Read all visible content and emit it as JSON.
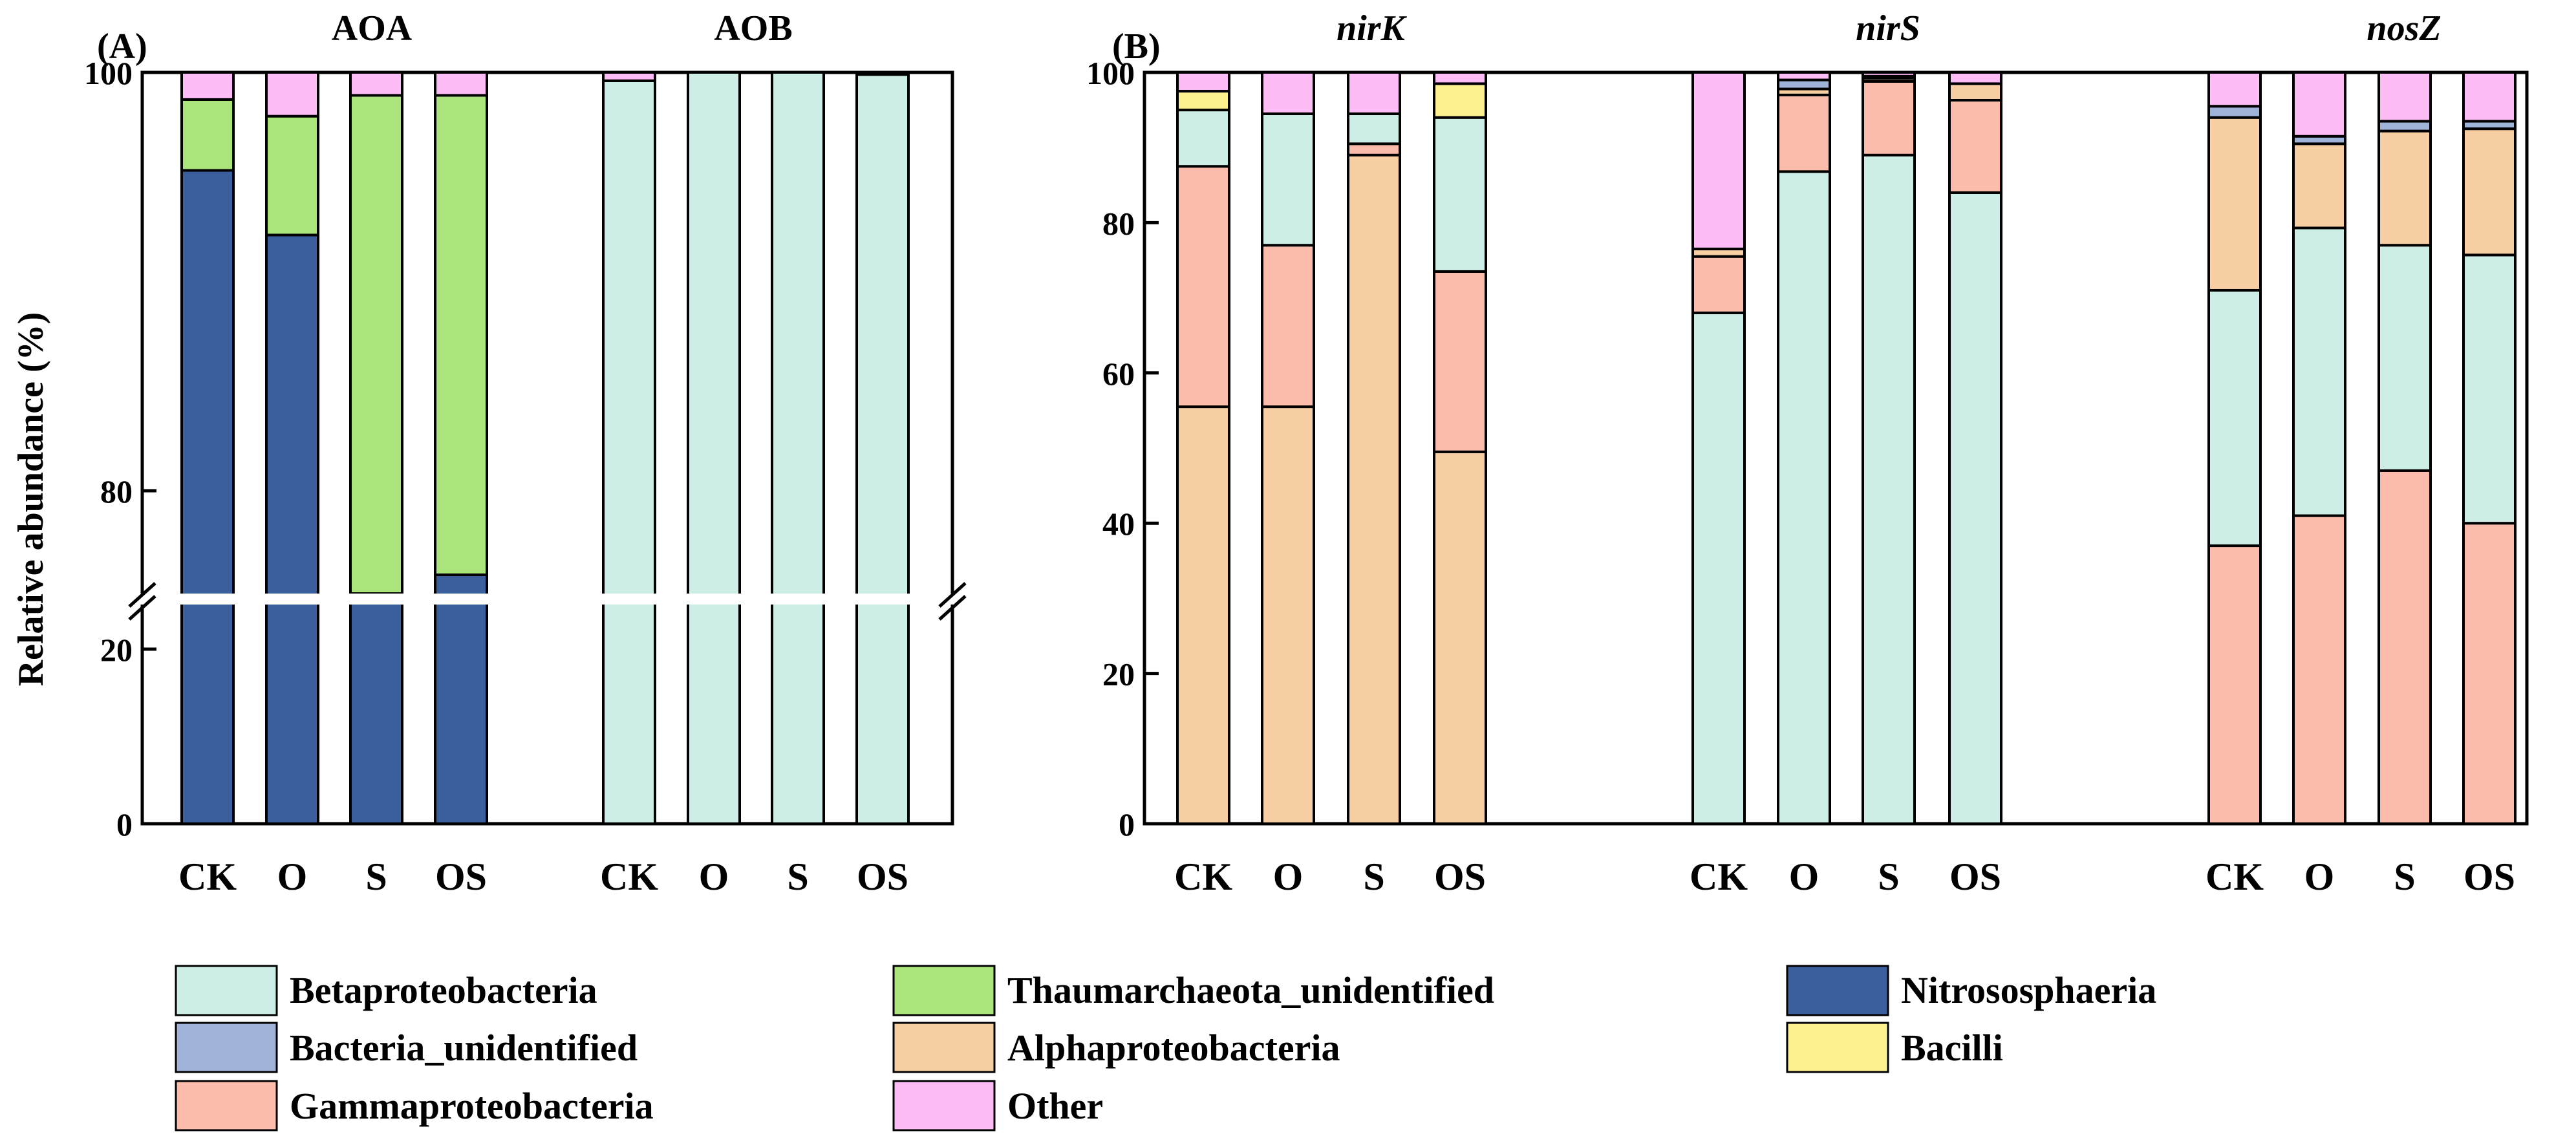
{
  "chart_data": [
    {
      "panel": "(A)",
      "type": "bar",
      "stacked": true,
      "ylabel": "Relative abundance (%)",
      "yaxis_break": {
        "lower": [
          0,
          25
        ],
        "upper": [
          75,
          100
        ]
      },
      "yticks": [
        "0",
        "20",
        "80",
        "100"
      ],
      "groups": [
        {
          "title": "AOA",
          "categories": [
            "CK",
            "O",
            "S",
            "OS"
          ],
          "series": [
            {
              "name": "Nitrososphaeria",
              "values": [
                95.3,
                92.2,
                73.9,
                75.9
              ]
            },
            {
              "name": "Thaumarchaeota_unidentified",
              "values": [
                3.4,
                5.7,
                25.0,
                23.0
              ]
            },
            {
              "name": "Other",
              "values": [
                1.3,
                2.1,
                1.1,
                1.1
              ]
            }
          ]
        },
        {
          "title": "AOB",
          "categories": [
            "CK",
            "O",
            "S",
            "OS"
          ],
          "series": [
            {
              "name": "Betaproteobacteria",
              "values": [
                99.6,
                100,
                100,
                99.9
              ]
            },
            {
              "name": "Other",
              "values": [
                0.4,
                0,
                0,
                0.1
              ]
            }
          ]
        }
      ]
    },
    {
      "panel": "(B)",
      "type": "bar",
      "stacked": true,
      "ylim": [
        0,
        100
      ],
      "yticks": [
        "0",
        "20",
        "40",
        "60",
        "80",
        "100"
      ],
      "groups": [
        {
          "title": "nirK",
          "categories": [
            "CK",
            "O",
            "S",
            "OS"
          ],
          "series": [
            {
              "name": "Alphaproteobacteria",
              "values": [
                55.5,
                55.5,
                89.0,
                49.5
              ]
            },
            {
              "name": "Gammaproteobacteria",
              "values": [
                32.0,
                21.5,
                1.5,
                24.0
              ]
            },
            {
              "name": "Betaproteobacteria",
              "values": [
                7.5,
                17.5,
                4.0,
                20.5
              ]
            },
            {
              "name": "Bacilli",
              "values": [
                2.5,
                0,
                0,
                4.5
              ]
            },
            {
              "name": "Other",
              "values": [
                2.5,
                5.5,
                5.5,
                1.5
              ]
            }
          ]
        },
        {
          "title": "nirS",
          "categories": [
            "CK",
            "O",
            "S",
            "OS"
          ],
          "series": [
            {
              "name": "Betaproteobacteria",
              "values": [
                68.0,
                86.8,
                89.0,
                84.0
              ]
            },
            {
              "name": "Gammaproteobacteria",
              "values": [
                7.5,
                10.2,
                9.8,
                12.3
              ]
            },
            {
              "name": "Alphaproteobacteria",
              "values": [
                1.0,
                0.8,
                0.4,
                2.2
              ]
            },
            {
              "name": "Bacteria_unidentified",
              "values": [
                0,
                1.2,
                0.3,
                0
              ]
            },
            {
              "name": "Other",
              "values": [
                23.5,
                1.0,
                0.5,
                1.5
              ]
            }
          ]
        },
        {
          "title": "nosZ",
          "categories": [
            "CK",
            "O",
            "S",
            "OS"
          ],
          "series": [
            {
              "name": "Gammaproteobacteria",
              "values": [
                37.0,
                41.0,
                47.0,
                40.0
              ]
            },
            {
              "name": "Betaproteobacteria",
              "values": [
                34.0,
                38.3,
                30.0,
                35.7
              ]
            },
            {
              "name": "Alphaproteobacteria",
              "values": [
                23.0,
                11.2,
                15.2,
                16.8
              ]
            },
            {
              "name": "Bacteria_unidentified",
              "values": [
                1.5,
                1.0,
                1.3,
                1.0
              ]
            },
            {
              "name": "Other",
              "values": [
                4.5,
                8.5,
                6.5,
                6.5
              ]
            }
          ]
        }
      ]
    }
  ],
  "legend": [
    {
      "name": "Betaproteobacteria",
      "color": "#cdeee6"
    },
    {
      "name": "Thaumarchaeota_unidentified",
      "color": "#abe47a"
    },
    {
      "name": "Nitrososphaeria",
      "color": "#3b5f9c"
    },
    {
      "name": "Bacteria_unidentified",
      "color": "#9fb3d8"
    },
    {
      "name": "Alphaproteobacteria",
      "color": "#f8cfa2"
    },
    {
      "name": "Bacilli",
      "color": "#fdf08e"
    },
    {
      "name": "Gammaproteobacteria",
      "color": "#fbbcac"
    },
    {
      "name": "Other",
      "color": "#fdbcf5"
    }
  ]
}
